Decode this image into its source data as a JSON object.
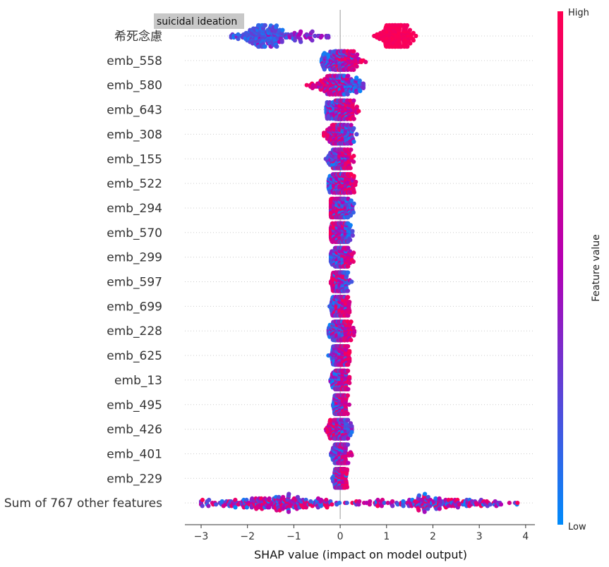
{
  "chart_data": {
    "type": "scatter",
    "subtype": "shap-beeswarm",
    "title": "",
    "xlabel": "SHAP value (impact on model output)",
    "ylabel": "",
    "xlim": [
      -3.35,
      4.2
    ],
    "xticks": [
      -3,
      -2,
      -1,
      0,
      1,
      2,
      3,
      4
    ],
    "xtick_labels": [
      "−3",
      "−2",
      "−1",
      "0",
      "1",
      "2",
      "3",
      "4"
    ],
    "grid": false,
    "annotation": "suicidal ideation",
    "colorbar": {
      "title": "Feature value",
      "high_label": "High",
      "low_label": "Low",
      "low_color": "#008bfb",
      "mid_color": "#b300b5",
      "high_color": "#ff0052"
    },
    "features": [
      {
        "name": "希死念慮",
        "min": -2.35,
        "max": 1.7,
        "low_center": -1.7,
        "high_center": 1.2,
        "pattern": "bimodal"
      },
      {
        "name": "emb_558",
        "min": -0.4,
        "max": 0.55,
        "pattern": "high-right"
      },
      {
        "name": "emb_580",
        "min": -0.75,
        "max": 0.5,
        "pattern": "high-left"
      },
      {
        "name": "emb_643",
        "min": -0.3,
        "max": 0.45,
        "pattern": "high-right"
      },
      {
        "name": "emb_308",
        "min": -0.35,
        "max": 0.4,
        "pattern": "high-left"
      },
      {
        "name": "emb_155",
        "min": -0.4,
        "max": 0.3,
        "pattern": "high-right"
      },
      {
        "name": "emb_522",
        "min": -0.25,
        "max": 0.5,
        "pattern": "high-right"
      },
      {
        "name": "emb_294",
        "min": -0.2,
        "max": 0.45,
        "pattern": "high-left"
      },
      {
        "name": "emb_570",
        "min": -0.2,
        "max": 0.35,
        "pattern": "high-left"
      },
      {
        "name": "emb_299",
        "min": -0.2,
        "max": 0.35,
        "pattern": "high-right"
      },
      {
        "name": "emb_597",
        "min": -0.2,
        "max": 0.25,
        "pattern": "high-left"
      },
      {
        "name": "emb_699",
        "min": -0.3,
        "max": 0.2,
        "pattern": "high-right"
      },
      {
        "name": "emb_228",
        "min": -0.25,
        "max": 0.4,
        "pattern": "high-right"
      },
      {
        "name": "emb_625",
        "min": -0.3,
        "max": 0.2,
        "pattern": "high-right"
      },
      {
        "name": "emb_13",
        "min": -0.3,
        "max": 0.2,
        "pattern": "high-right"
      },
      {
        "name": "emb_495",
        "min": -0.2,
        "max": 0.2,
        "pattern": "high-right"
      },
      {
        "name": "emb_426",
        "min": -0.4,
        "max": 0.25,
        "pattern": "high-left"
      },
      {
        "name": "emb_401",
        "min": -0.2,
        "max": 0.25,
        "pattern": "high-right"
      },
      {
        "name": "emb_229",
        "min": -0.2,
        "max": 0.15,
        "pattern": "high-right"
      },
      {
        "name": "Sum of 767 other features",
        "min": -3.0,
        "max": 3.9,
        "pattern": "mixed-wide"
      }
    ]
  }
}
